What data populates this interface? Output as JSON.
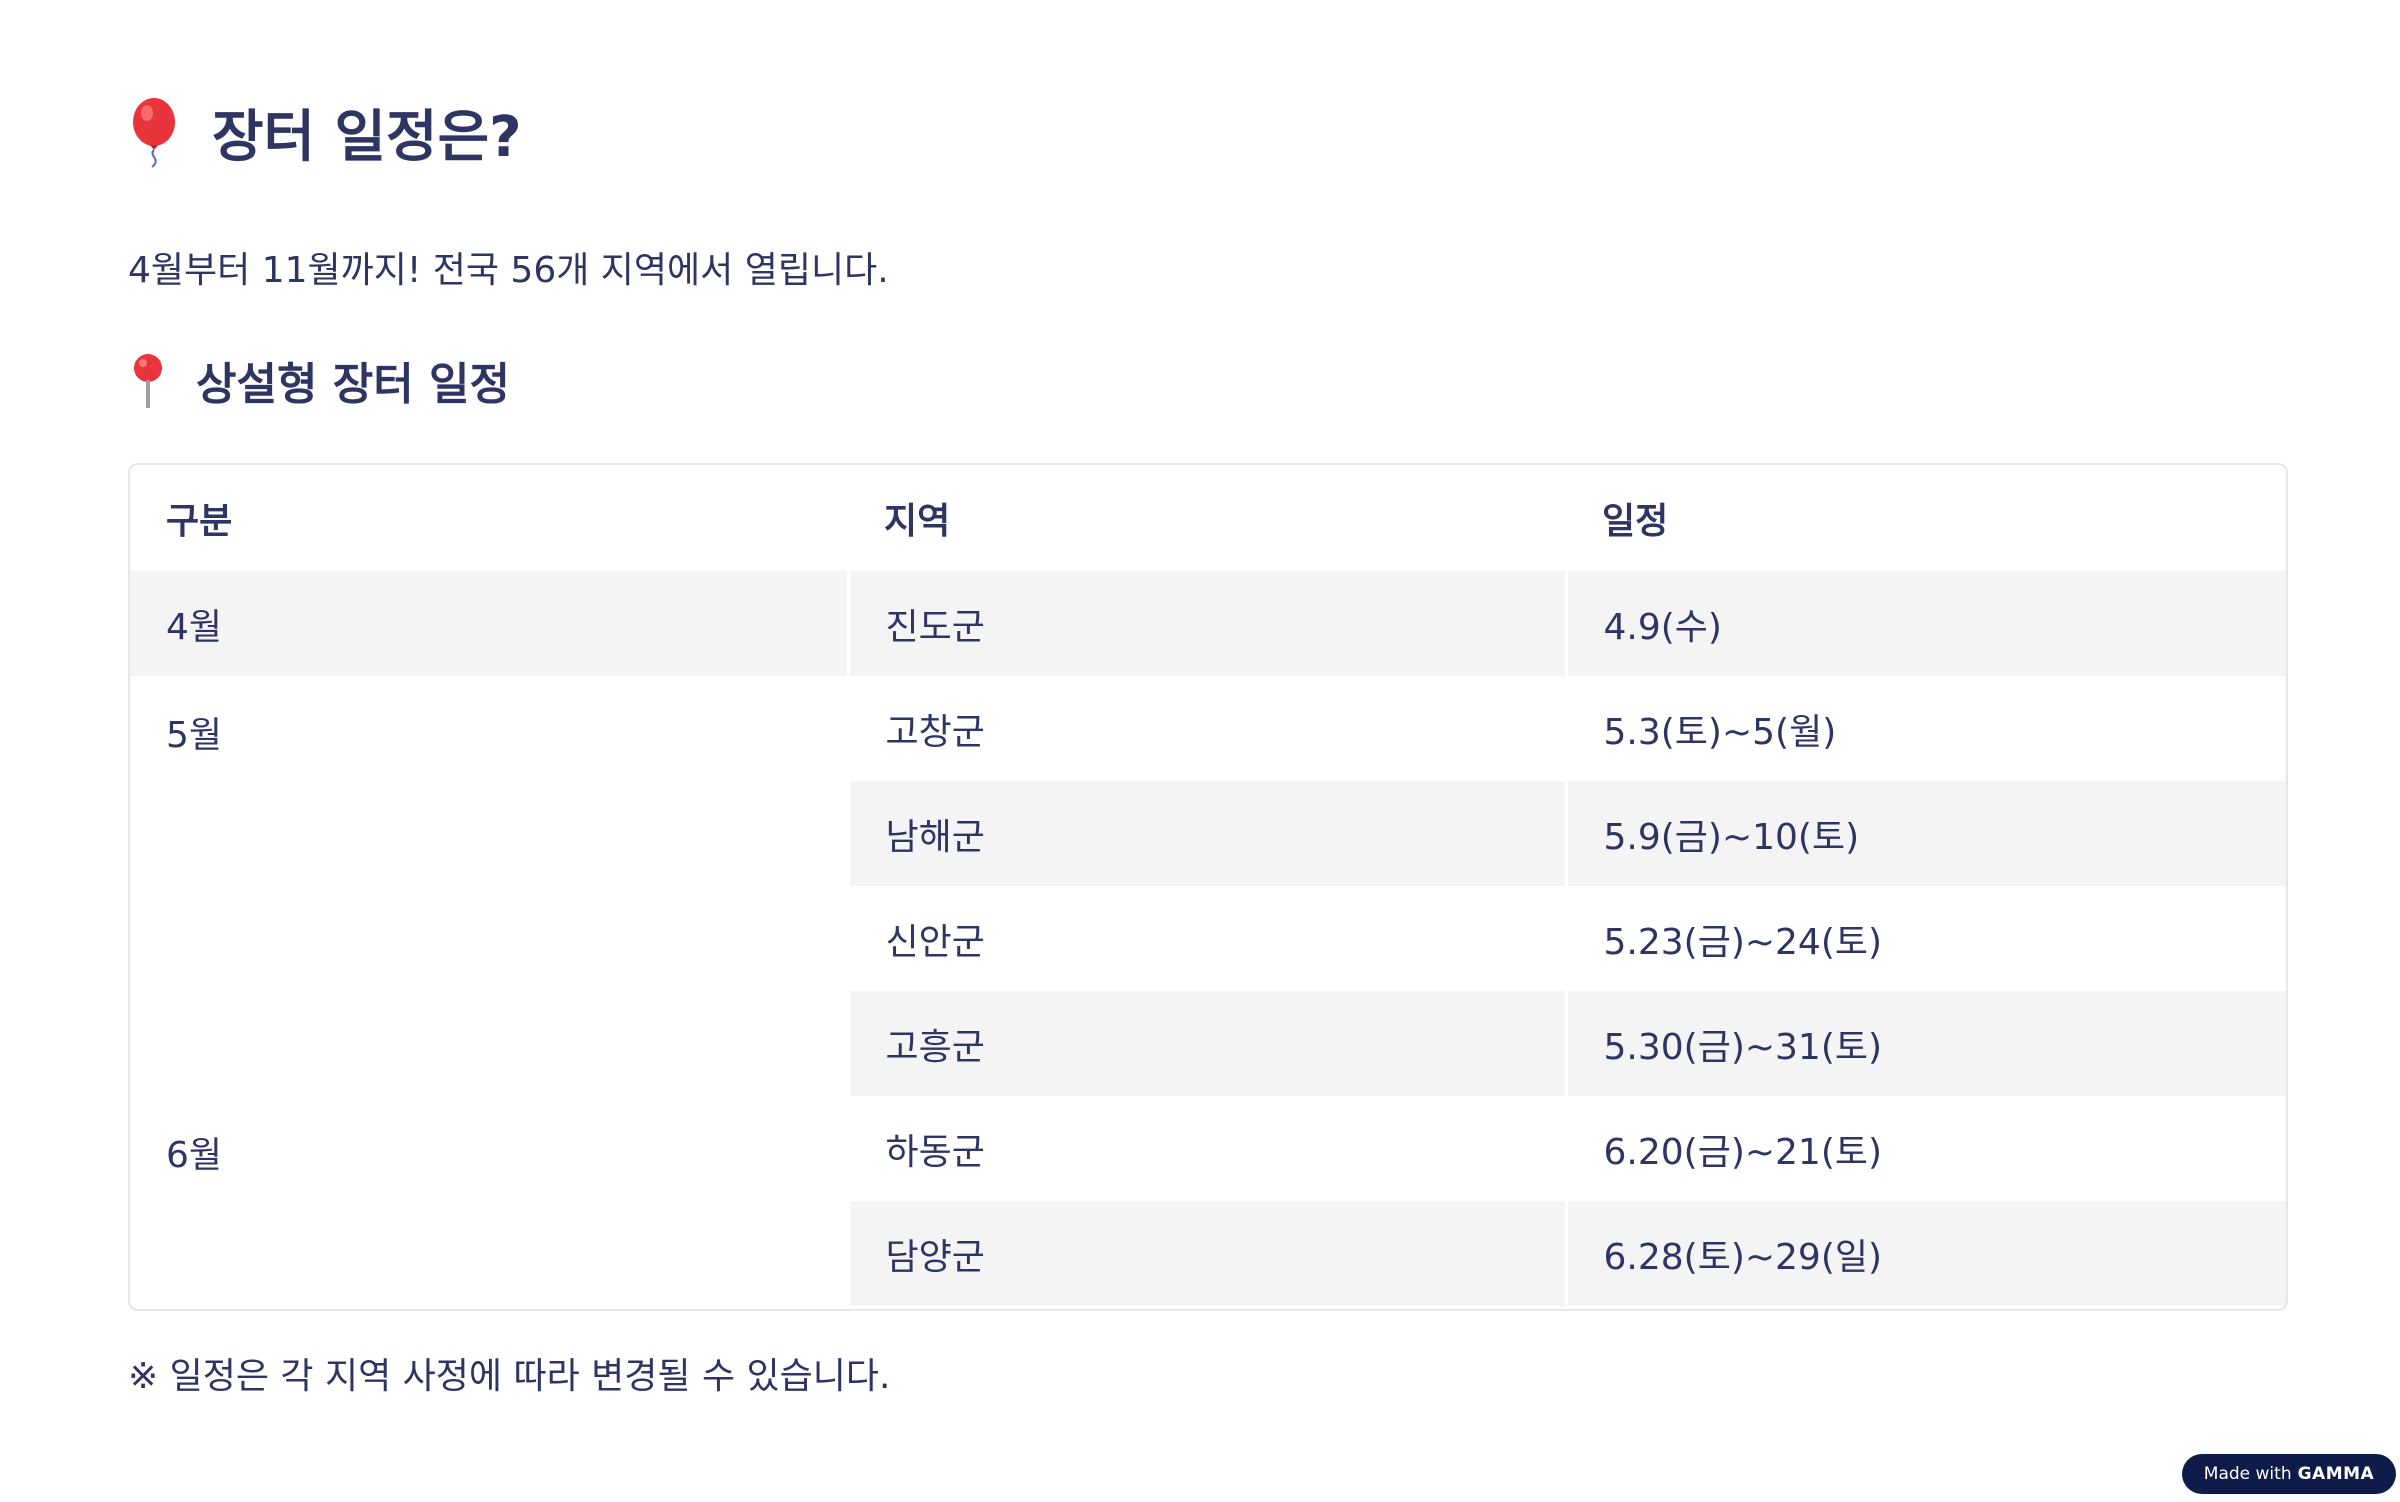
{
  "title": {
    "icon": "balloon-icon",
    "text": "장터 일정은?"
  },
  "subtitle": "4월부터 11월까지! 전국 56개 지역에서 열립니다.",
  "section": {
    "icon": "pin-icon",
    "title": "상설형 장터 일정"
  },
  "table": {
    "headers": [
      "구분",
      "지역",
      "일정"
    ],
    "rows": [
      {
        "month": "4월",
        "region": "진도군",
        "date": "4.9(수)"
      },
      {
        "month": "5월",
        "region": "고창군",
        "date": "5.3(토)~5(월)"
      },
      {
        "month": "",
        "region": "남해군",
        "date": "5.9(금)~10(토)"
      },
      {
        "month": "",
        "region": "신안군",
        "date": "5.23(금)~24(토)"
      },
      {
        "month": "",
        "region": "고흥군",
        "date": "5.30(금)~31(토)"
      },
      {
        "month": "6월",
        "region": "하동군",
        "date": "6.20(금)~21(토)"
      },
      {
        "month": "",
        "region": "담양군",
        "date": "6.28(토)~29(일)"
      }
    ]
  },
  "note": "※ 일정은 각 지역 사정에 따라 변경될 수 있습니다.",
  "badge": {
    "prefix": "Made with",
    "brand": "GAMMA"
  },
  "colors": {
    "text": "#2e3563",
    "shade": "#f4f4f5",
    "badge": "#0f1c4a"
  }
}
